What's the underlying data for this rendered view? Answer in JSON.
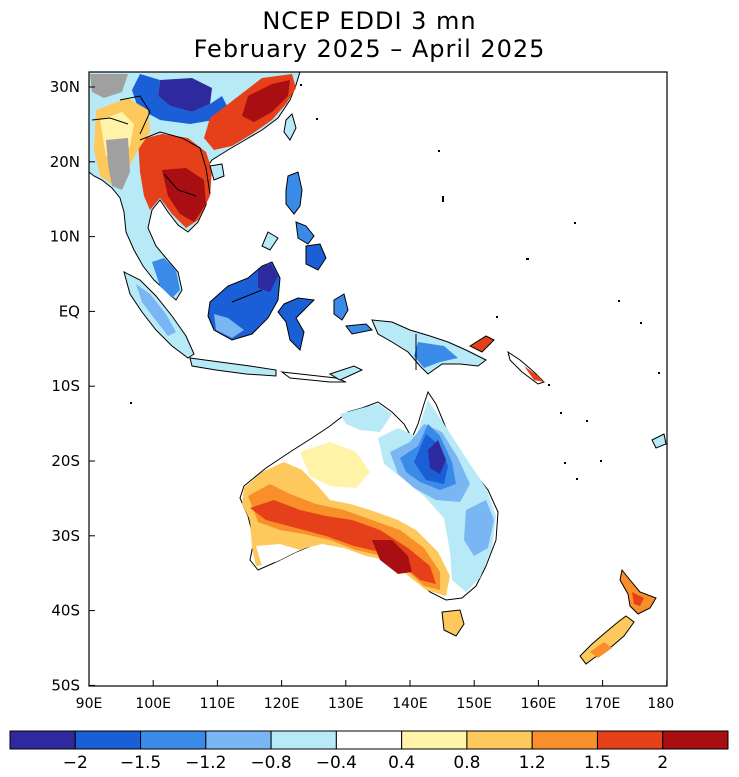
{
  "title": {
    "line1": "NCEP EDDI 3 mn",
    "line2": "February 2025 – April 2025"
  },
  "lat_labels": [
    "30N",
    "20N",
    "10N",
    "EQ",
    "10S",
    "20S",
    "30S",
    "40S",
    "50S"
  ],
  "lon_labels": [
    "90E",
    "100E",
    "110E",
    "120E",
    "130E",
    "140E",
    "150E",
    "160E",
    "170E",
    "180"
  ],
  "colorbar": {
    "colors": [
      "#2e2a9e",
      "#1a5fd6",
      "#3a8ae8",
      "#7ab6f3",
      "#b7eaf6",
      "#ffffff",
      "#fff3a8",
      "#fdc95c",
      "#f98f2a",
      "#e5401a",
      "#a80e12"
    ],
    "labels": [
      "−2",
      "−1.5",
      "−1.2",
      "−0.8",
      "−0.4",
      "0.4",
      "0.8",
      "1.2",
      "1.5",
      "2"
    ]
  },
  "map": {
    "lon_range": [
      90,
      180
    ],
    "lat_range": [
      -50,
      32
    ],
    "missing_color": "#a0a0a0"
  }
}
